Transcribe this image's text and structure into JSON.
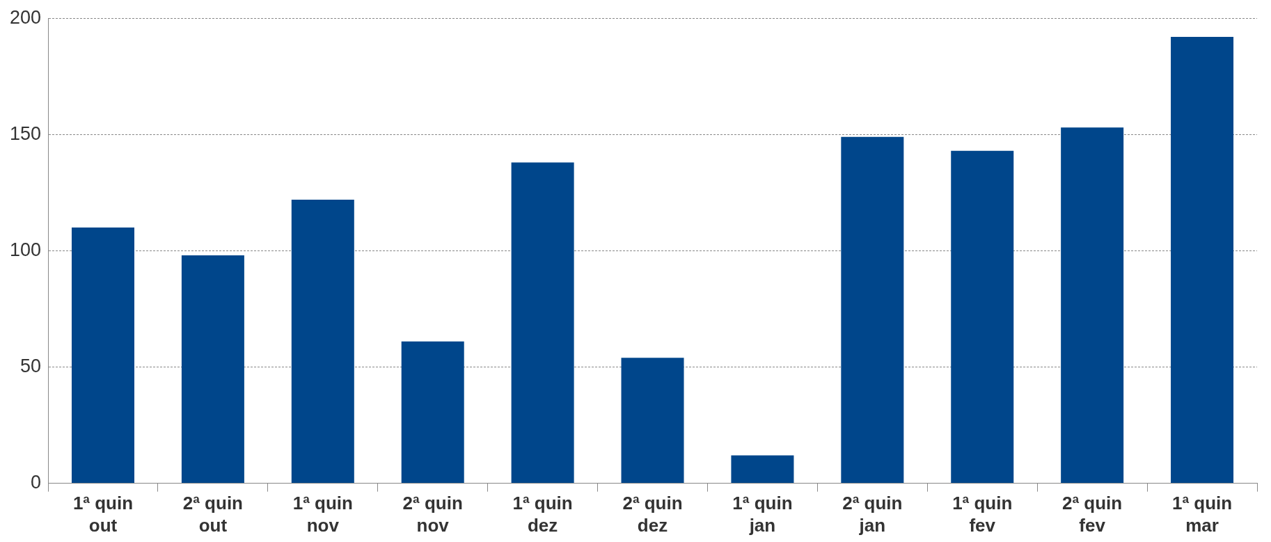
{
  "chart_data": {
    "type": "bar",
    "categories": [
      "1ª quin out",
      "2ª quin out",
      "1ª quin nov",
      "2ª quin nov",
      "1ª quin dez",
      "2ª quin dez",
      "1ª quin jan",
      "2ª quin jan",
      "1ª quin fev",
      "2ª quin fev",
      "1ª quin mar"
    ],
    "values": [
      110,
      98,
      122,
      61,
      138,
      54,
      12,
      149,
      143,
      153,
      192
    ],
    "color": "#00468b",
    "ylim": [
      0,
      200
    ],
    "yticks": [
      0,
      50,
      100,
      150,
      200
    ],
    "grid": "y",
    "legend": false
  }
}
